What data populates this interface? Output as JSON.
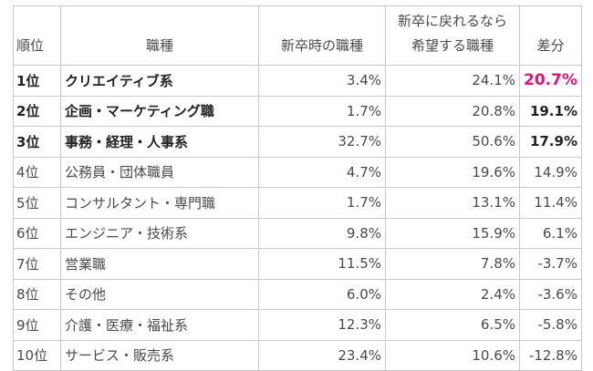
{
  "headers": {
    "rank": "順位",
    "job": "職種",
    "now": "新卒時の職種",
    "hope_line1": "新卒に戻れるなら",
    "hope_line2": "希望する職種",
    "diff": "差分"
  },
  "rows": [
    {
      "rank": "1位",
      "job": "クリエイティブ系",
      "now": "3.4%",
      "hope": "24.1%",
      "diff": "20.7%"
    },
    {
      "rank": "2位",
      "job": "企画・マーケティング職",
      "now": "1.7%",
      "hope": "20.8%",
      "diff": "19.1%"
    },
    {
      "rank": "3位",
      "job": "事務・経理・人事系",
      "now": "32.7%",
      "hope": "50.6%",
      "diff": "17.9%"
    },
    {
      "rank": "4位",
      "job": "公務員・団体職員",
      "now": "4.7%",
      "hope": "19.6%",
      "diff": "14.9%"
    },
    {
      "rank": "5位",
      "job": "コンサルタント・専門職",
      "now": "1.7%",
      "hope": "13.1%",
      "diff": "11.4%"
    },
    {
      "rank": "6位",
      "job": "エンジニア・技術系",
      "now": "9.8%",
      "hope": "15.9%",
      "diff": "6.1%"
    },
    {
      "rank": "7位",
      "job": "営業職",
      "now": "11.5%",
      "hope": "7.8%",
      "diff": "-3.7%"
    },
    {
      "rank": "8位",
      "job": "その他",
      "now": "6.0%",
      "hope": "2.4%",
      "diff": "-3.6%"
    },
    {
      "rank": "9位",
      "job": "介護・医療・福祉系",
      "now": "12.3%",
      "hope": "6.5%",
      "diff": "-5.8%"
    },
    {
      "rank": "10位",
      "job": "サービス・販売系",
      "now": "23.4%",
      "hope": "10.6%",
      "diff": "-12.8%"
    }
  ],
  "highlight_color": "#e0127a"
}
